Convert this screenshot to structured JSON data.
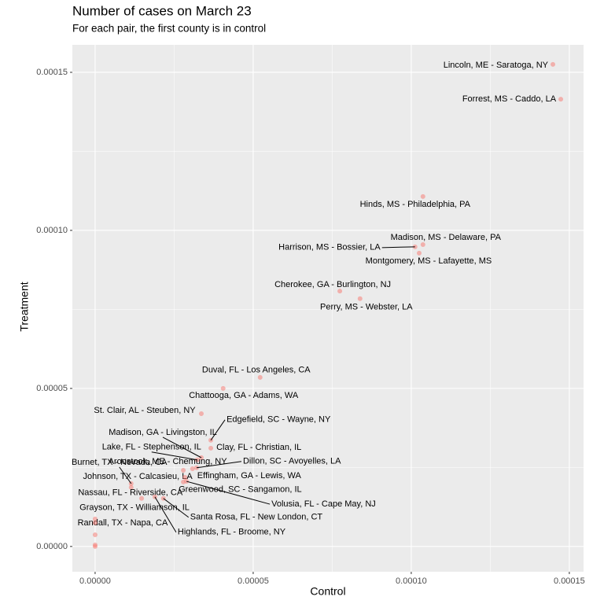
{
  "chart_data": {
    "type": "scatter",
    "title": "Number of cases on March 23",
    "subtitle": "For each pair, the first county is in control",
    "x_label": "Control",
    "y_label": "Treatment",
    "color": "#F8766D",
    "grid": true,
    "xlim": [
      -7.2e-06,
      0.0001545
    ],
    "ylim": [
      -8e-06,
      0.0001587
    ],
    "xticks": [
      {
        "value": 0,
        "label": "0.00000"
      },
      {
        "value": 5e-05,
        "label": "0.00005"
      },
      {
        "value": 0.0001,
        "label": "0.00010"
      },
      {
        "value": 0.00015,
        "label": "0.00015"
      }
    ],
    "yticks": [
      {
        "value": 0,
        "label": "0.00000"
      },
      {
        "value": 5e-05,
        "label": "0.00005"
      },
      {
        "value": 0.0001,
        "label": "0.00010"
      },
      {
        "value": 0.00015,
        "label": "0.00015"
      }
    ],
    "x": [
      0.0001448,
      0.0001473,
      0.0001037,
      0.0001037,
      0.0001012,
      0.0001025,
      7.74e-05,
      8.38e-05,
      5.22e-05,
      4.05e-05,
      3.36e-05,
      3.66e-05,
      3.66e-05,
      3.36e-05,
      3.23e-05,
      3.21e-05,
      3.08e-05,
      2.79e-05,
      1.14e-05,
      2.79e-05,
      2.84e-05,
      2.89e-05,
      1.14e-05,
      1.47e-05,
      2.16e-05,
      0,
      1.89e-05,
      0,
      0,
      0,
      0
    ],
    "values": [
      0.0001525,
      0.0001415,
      0.0001107,
      9.55e-05,
      9.48e-05,
      9.28e-05,
      8.08e-05,
      7.84e-05,
      5.35e-05,
      5e-05,
      4.2e-05,
      3.36e-05,
      3.11e-05,
      2.81e-05,
      2.74e-05,
      2.49e-05,
      2.46e-05,
      2.41e-05,
      1.99e-05,
      2.04e-05,
      2.19e-05,
      2.06e-05,
      1.87e-05,
      1.52e-05,
      1.52e-05,
      8.7e-06,
      1.57e-05,
      7.5e-06,
      3.7e-06,
      5e-07,
      0
    ],
    "labels": [
      "Lincoln, ME - Saratoga, NY",
      "Forrest, MS - Caddo, LA",
      "Hinds, MS - Philadelphia, PA",
      "Madison, MS - Delaware, PA",
      "Harrison, MS - Bossier, LA",
      "Montgomery, MS - Lafayette, MS",
      "Cherokee, GA - Burlington, NJ",
      "Perry, MS - Webster, LA",
      "Duval, FL - Los Angeles, CA",
      "Chattooga, GA - Adams, WA",
      "St. Clair, AL - Steuben, NY",
      "Edgefield, SC - Wayne, NY",
      "Clay, FL - Christian, IL",
      "Madison, GA - Livingston, IL",
      "Lake, FL - Stephenson, IL",
      "Dillon, SC - Avoyelles, LA",
      "Effingham, GA - Lewis, WA",
      "Aroostook, ME - Chemung, NY",
      "Burnet, TX - Nevada, CA",
      "Johnson, TX - Calcasieu, LA",
      "Greenwood, SC - Sangamon, IL",
      "Volusia, FL - Cape May, NJ",
      "Nassau, FL - Riverside, CA",
      "Grayson, TX - Williamson, IL",
      "Santa Rosa, FL - New London, CT",
      "Randall, TX - Napa, CA",
      "Highlands, FL - Broome, NY",
      null,
      null,
      null,
      null
    ]
  }
}
